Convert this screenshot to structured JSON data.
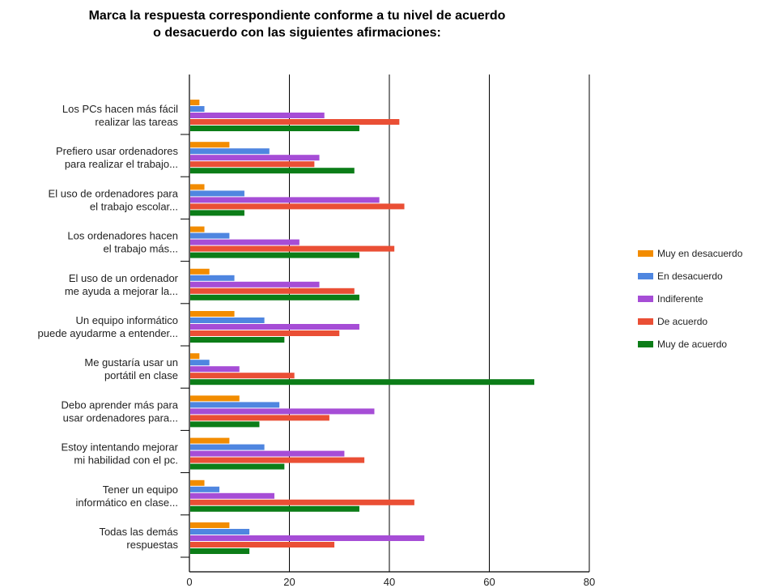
{
  "chart_data": {
    "type": "bar",
    "orientation": "horizontal",
    "title": [
      "Marca la respuesta correspondiente conforme a tu nivel de acuerdo",
      "o desacuerdo con las siguientes afirmaciones:"
    ],
    "categories": [
      [
        "Los PCs hacen más fácil",
        "realizar las tareas"
      ],
      [
        "Prefiero usar ordenadores",
        "para realizar el trabajo..."
      ],
      [
        "El uso de ordenadores para",
        "el trabajo escolar..."
      ],
      [
        "Los ordenadores hacen",
        "el trabajo más..."
      ],
      [
        "El uso de un ordenador",
        "me ayuda a mejorar la..."
      ],
      [
        "Un equipo informático",
        "puede ayudarme a entender..."
      ],
      [
        "Me gustaría usar un",
        "portátil en clase"
      ],
      [
        "Debo aprender más para",
        "usar ordenadores para..."
      ],
      [
        "Estoy intentando mejorar",
        "mi habilidad con el pc."
      ],
      [
        "Tener un equipo",
        "informático en clase..."
      ],
      [
        "Todas las demás",
        "respuestas"
      ]
    ],
    "series": [
      {
        "name": "Muy en desacuerdo",
        "color": "#f28c00",
        "values": [
          2,
          8,
          3,
          3,
          4,
          9,
          2,
          10,
          8,
          3,
          8
        ]
      },
      {
        "name": "En desacuerdo",
        "color": "#4f86e0",
        "values": [
          3,
          16,
          11,
          8,
          9,
          15,
          4,
          18,
          15,
          6,
          12
        ]
      },
      {
        "name": "Indiferente",
        "color": "#a64dd6",
        "values": [
          27,
          26,
          38,
          22,
          26,
          34,
          10,
          37,
          31,
          17,
          47
        ]
      },
      {
        "name": "De acuerdo",
        "color": "#ea4f35",
        "values": [
          42,
          25,
          43,
          41,
          33,
          30,
          21,
          28,
          35,
          45,
          29
        ]
      },
      {
        "name": "Muy de acuerdo",
        "color": "#0c7d18",
        "values": [
          34,
          33,
          11,
          34,
          34,
          19,
          69,
          14,
          19,
          34,
          12
        ]
      }
    ],
    "xlim": [
      0,
      80
    ],
    "xticks": [
      0,
      20,
      40,
      60,
      80
    ],
    "grid": true,
    "legend_position": "right"
  }
}
